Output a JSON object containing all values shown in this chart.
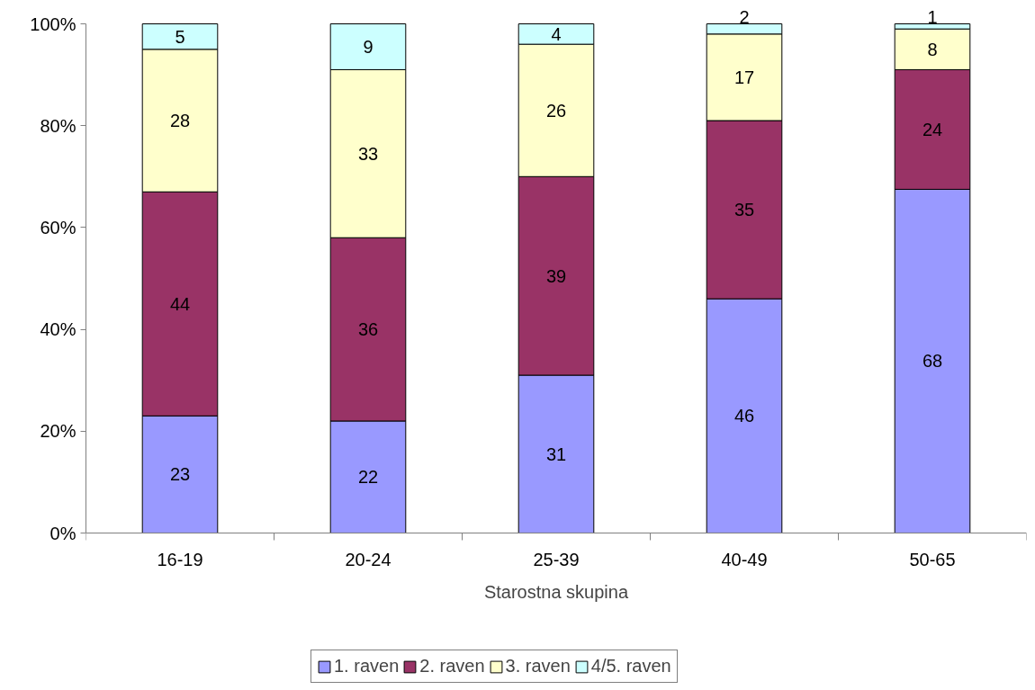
{
  "chart_data": {
    "type": "bar",
    "stacked": true,
    "xlabel": "Starostna skupina",
    "categories": [
      "16-19",
      "20-24",
      "25-39",
      "40-49",
      "50-65"
    ],
    "ylim": [
      0,
      100
    ],
    "yticks": [
      {
        "value": 0,
        "label": "0%"
      },
      {
        "value": 20,
        "label": "20%"
      },
      {
        "value": 40,
        "label": "40%"
      },
      {
        "value": 60,
        "label": "60%"
      },
      {
        "value": 80,
        "label": "80%"
      },
      {
        "value": 100,
        "label": "100%"
      }
    ],
    "grid": false,
    "legend": "bottom",
    "series": [
      {
        "name": "1. raven",
        "color": "#9999ff",
        "values": [
          23,
          22,
          31,
          46,
          67.5
        ],
        "value_labels": [
          "23",
          "22",
          "31",
          "46",
          "68"
        ]
      },
      {
        "name": "2. raven",
        "color": "#993366",
        "values": [
          44,
          36,
          39,
          35,
          23.5
        ],
        "value_labels": [
          "44",
          "36",
          "39",
          "35",
          "24"
        ]
      },
      {
        "name": "3. raven",
        "color": "#ffffcc",
        "values": [
          28,
          33,
          26,
          17,
          8
        ],
        "value_labels": [
          "28",
          "33",
          "26",
          "17",
          "8"
        ]
      },
      {
        "name": "4/5. raven",
        "color": "#ccffff",
        "values": [
          5,
          9,
          4,
          2,
          1
        ],
        "value_labels": [
          "5",
          "9",
          "4",
          "2",
          "1"
        ]
      }
    ]
  }
}
